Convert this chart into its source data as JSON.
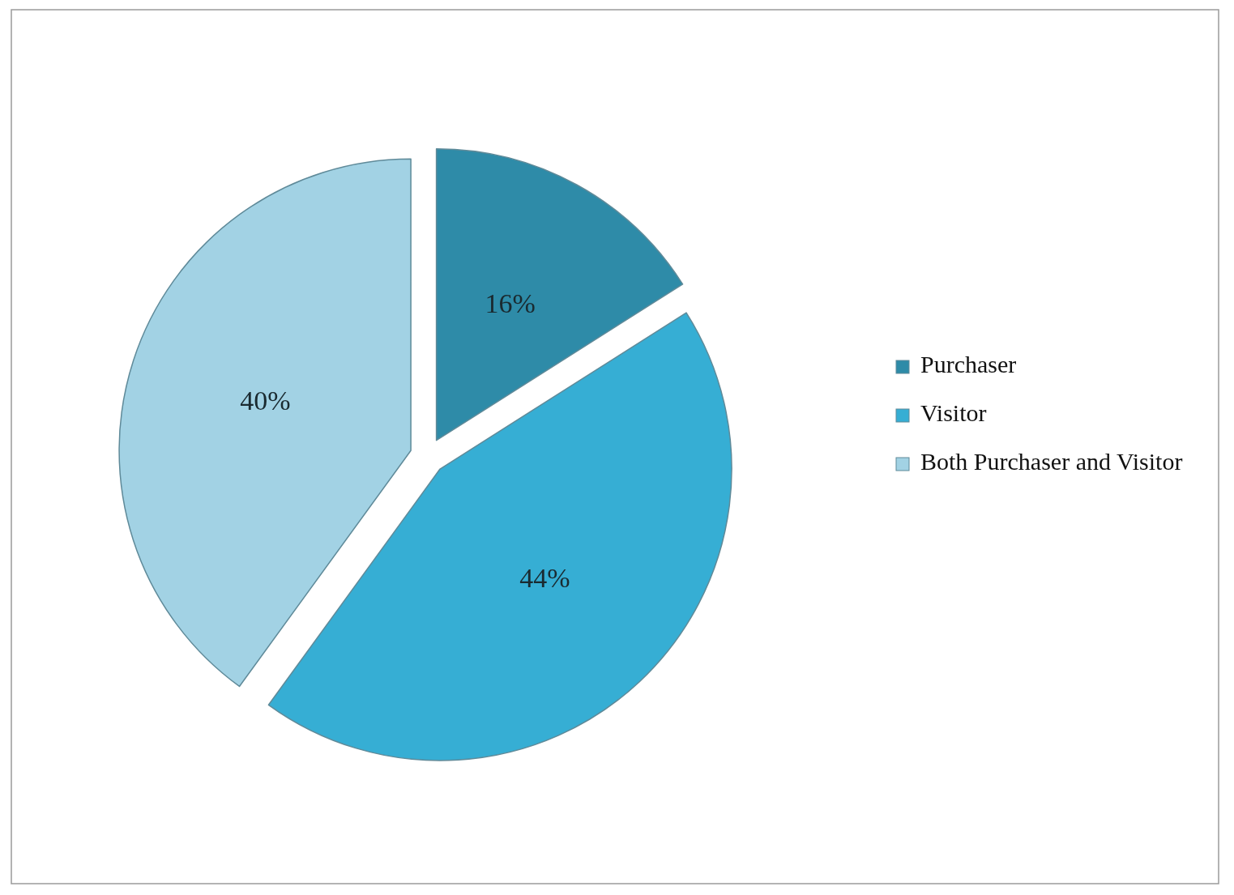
{
  "chart_data": {
    "type": "pie",
    "categories": [
      "Purchaser",
      "Visitor",
      "Both Purchaser and Visitor"
    ],
    "values": [
      16,
      44,
      40
    ],
    "colors": [
      "#2e8ba8",
      "#36aed4",
      "#a2d2e4"
    ],
    "value_labels": [
      "16%",
      "44%",
      "40%"
    ],
    "legend": "right"
  }
}
